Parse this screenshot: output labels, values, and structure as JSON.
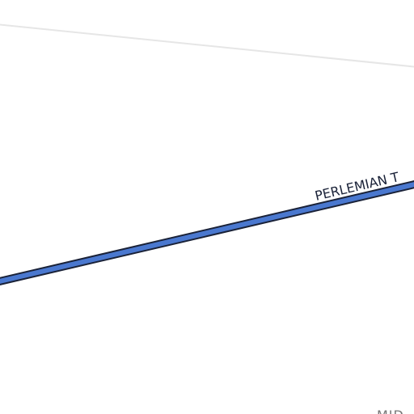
{
  "road_label": "PERLEMIAN T",
  "area_label": "MID"
}
